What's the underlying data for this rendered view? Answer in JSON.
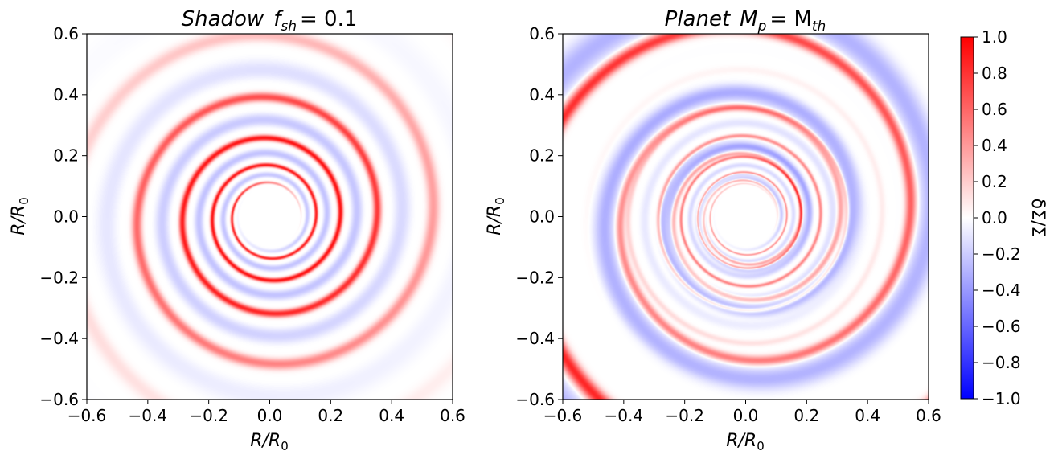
{
  "chart_data": [
    {
      "type": "heatmap",
      "title": "Shadow  f_sh = 0.1",
      "title_parts": {
        "name": "Shadow",
        "sym": "f",
        "sub": "sh",
        "rhs": "= 0.1"
      },
      "xlabel": "R/R_0",
      "xlabel_parts": {
        "base": "R/R",
        "sub": "0"
      },
      "ylabel": "R/R_0",
      "ylabel_parts": {
        "base": "R/R",
        "sub": "0"
      },
      "xlim": [
        -0.6,
        0.6
      ],
      "ylim": [
        -0.6,
        0.6
      ],
      "xticks": [
        "−0.6",
        "−0.4",
        "−0.2",
        "0.0",
        "0.2",
        "0.4",
        "0.6"
      ],
      "yticks": [
        "−0.6",
        "−0.4",
        "−0.2",
        "0.0",
        "0.2",
        "0.4",
        "0.6"
      ],
      "inner_hole_radius": 0.1,
      "spiral_arms": [
        {
          "sign": "positive",
          "r_start": 0.12,
          "r_end": 0.75,
          "turns": 3.3,
          "amplitude": 0.4
        },
        {
          "sign": "negative",
          "r_start": 0.13,
          "r_end": 0.8,
          "turns": 3.3,
          "amplitude": 0.2
        }
      ]
    },
    {
      "type": "heatmap",
      "title": "Planet  M_p = M_th",
      "title_parts": {
        "name": "Planet",
        "sym": "M",
        "sub": "p",
        "rhs": "= M",
        "sub2": "th"
      },
      "xlabel": "R/R_0",
      "xlabel_parts": {
        "base": "R/R",
        "sub": "0"
      },
      "ylabel": "R/R_0",
      "ylabel_parts": {
        "base": "R/R",
        "sub": "0"
      },
      "xlim": [
        -0.6,
        0.6
      ],
      "ylim": [
        -0.6,
        0.6
      ],
      "xticks": [
        "−0.6",
        "−0.4",
        "−0.2",
        "0.0",
        "0.2",
        "0.4",
        "0.6"
      ],
      "yticks": [
        "−0.6",
        "−0.4",
        "−0.2",
        "0.0",
        "0.2",
        "0.4",
        "0.6"
      ],
      "inner_hole_radius": 0.1,
      "spiral_arms": [
        {
          "sign": "positive",
          "r_start": 0.12,
          "r_end": 1.0,
          "turns": 4.0,
          "amplitude": 0.9
        },
        {
          "sign": "negative",
          "r_start": 0.14,
          "r_end": 0.85,
          "turns": 3.8,
          "amplitude": 0.3
        }
      ]
    }
  ],
  "colorbar": {
    "label": "δΣ/Σ",
    "colormap": "bwr",
    "vmin": -1.0,
    "vmax": 1.0,
    "ticks": [
      "1.0",
      "0.8",
      "0.6",
      "0.4",
      "0.2",
      "0.0",
      "−0.2",
      "−0.4",
      "−0.6",
      "−0.8",
      "−1.0"
    ],
    "colors": {
      "low": "#0000ff",
      "mid": "#ffffff",
      "high": "#ff0000"
    }
  }
}
